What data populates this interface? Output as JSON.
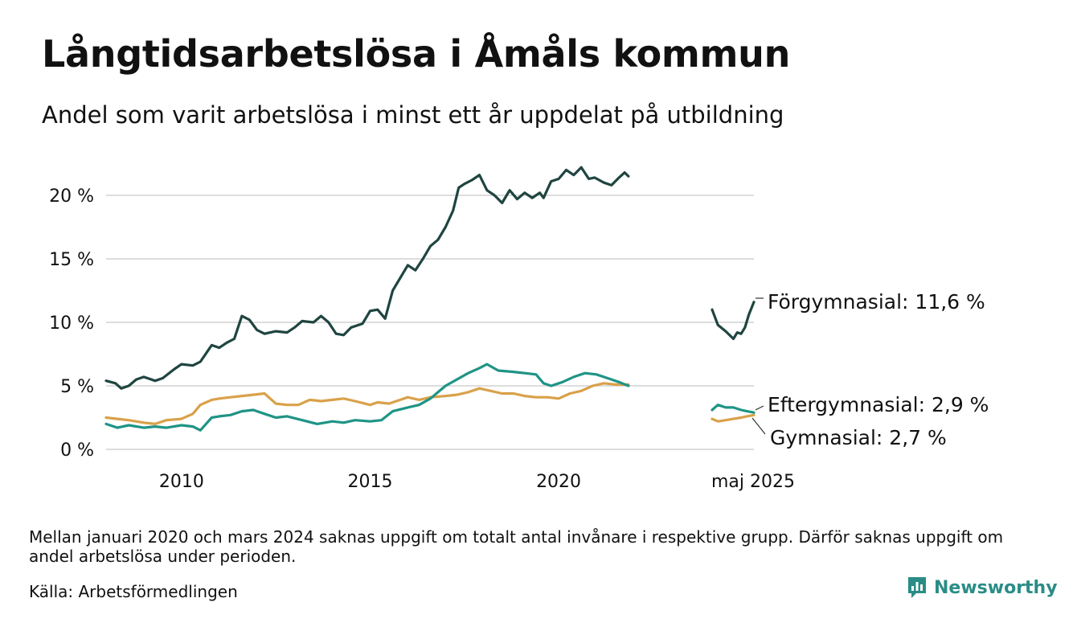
{
  "title": "Långtidsarbetslösa i Åmåls kommun",
  "subtitle": "Andel som varit arbetslösa i minst ett år uppdelat på utbildning",
  "footnote": "Mellan januari 2020 och mars 2024 saknas uppgift om totalt antal invånare i respektive grupp. Därför saknas uppgift om andel arbetslösa under perioden.",
  "source": "Källa: Arbetsförmedlingen",
  "brand": {
    "name": "Newsworthy",
    "icon": "newsworthy-logo-icon",
    "color": "#2a8c86"
  },
  "chart_data": {
    "type": "line",
    "grid": true,
    "ylim": [
      0,
      22.5
    ],
    "x_unit": "year",
    "y_ticks": [
      0,
      5,
      10,
      15,
      20
    ],
    "y_tick_labels": [
      "0 %",
      "5 %",
      "10 %",
      "15 %",
      "20 %"
    ],
    "x_ticks": [
      2010,
      2015,
      2020
    ],
    "x_tick_labels": [
      "2010",
      "2015",
      "2020"
    ],
    "broken_axis": {
      "gap_label": "maj 2025",
      "first_segment_xlim": [
        2008.0,
        2021.0
      ],
      "second_segment_xlim": [
        2024.25,
        2025.33
      ]
    },
    "series": [
      {
        "name": "Förgymnasial",
        "end_label": "Förgymnasial: 11,6 %",
        "color": "#1f4540",
        "points": [
          [
            2008.0,
            5.4
          ],
          [
            2008.25,
            5.2
          ],
          [
            2008.4,
            4.8
          ],
          [
            2008.6,
            5.0
          ],
          [
            2008.8,
            5.5
          ],
          [
            2009.0,
            5.7
          ],
          [
            2009.3,
            5.4
          ],
          [
            2009.5,
            5.6
          ],
          [
            2009.8,
            6.3
          ],
          [
            2010.0,
            6.7
          ],
          [
            2010.3,
            6.6
          ],
          [
            2010.5,
            6.9
          ],
          [
            2010.8,
            8.2
          ],
          [
            2011.0,
            8.0
          ],
          [
            2011.2,
            8.4
          ],
          [
            2011.4,
            8.7
          ],
          [
            2011.6,
            10.5
          ],
          [
            2011.8,
            10.2
          ],
          [
            2012.0,
            9.4
          ],
          [
            2012.2,
            9.1
          ],
          [
            2012.5,
            9.3
          ],
          [
            2012.8,
            9.2
          ],
          [
            2013.0,
            9.6
          ],
          [
            2013.2,
            10.1
          ],
          [
            2013.5,
            10.0
          ],
          [
            2013.7,
            10.5
          ],
          [
            2013.9,
            10.0
          ],
          [
            2014.1,
            9.1
          ],
          [
            2014.3,
            9.0
          ],
          [
            2014.5,
            9.6
          ],
          [
            2014.8,
            9.9
          ],
          [
            2015.0,
            10.9
          ],
          [
            2015.2,
            11.0
          ],
          [
            2015.4,
            10.3
          ],
          [
            2015.6,
            12.5
          ],
          [
            2015.8,
            13.5
          ],
          [
            2016.0,
            14.5
          ],
          [
            2016.2,
            14.1
          ],
          [
            2016.4,
            15.0
          ],
          [
            2016.6,
            16.0
          ],
          [
            2016.8,
            16.5
          ],
          [
            2017.0,
            17.5
          ],
          [
            2017.2,
            18.8
          ],
          [
            2017.35,
            20.6
          ],
          [
            2017.5,
            20.9
          ],
          [
            2017.7,
            21.2
          ],
          [
            2017.9,
            21.6
          ],
          [
            2018.1,
            20.4
          ],
          [
            2018.3,
            20.0
          ],
          [
            2018.5,
            19.4
          ],
          [
            2018.7,
            20.4
          ],
          [
            2018.9,
            19.7
          ],
          [
            2019.1,
            20.2
          ],
          [
            2019.3,
            19.8
          ],
          [
            2019.5,
            20.2
          ],
          [
            2019.6,
            19.8
          ],
          [
            2019.8,
            21.1
          ],
          [
            2020.0,
            21.3
          ],
          [
            2020.2,
            22.0
          ],
          [
            2020.4,
            21.6
          ],
          [
            2020.6,
            22.2
          ],
          [
            2020.8,
            21.3
          ],
          [
            2020.95,
            21.4
          ],
          [
            2021.2,
            21.0
          ],
          [
            2021.4,
            20.8
          ],
          [
            2021.6,
            21.4
          ],
          [
            2021.75,
            21.8
          ],
          [
            2021.85,
            21.5
          ],
          [
            2024.25,
            11.0
          ],
          [
            2024.4,
            9.8
          ],
          [
            2024.6,
            9.3
          ],
          [
            2024.8,
            8.7
          ],
          [
            2024.9,
            9.2
          ],
          [
            2025.0,
            9.1
          ],
          [
            2025.1,
            9.6
          ],
          [
            2025.2,
            10.6
          ],
          [
            2025.33,
            11.6
          ]
        ]
      },
      {
        "name": "Eftergymnasial",
        "end_label": "Eftergymnasial:  2,9 %",
        "color": "#1f9486",
        "points": [
          [
            2008.0,
            2.0
          ],
          [
            2008.3,
            1.7
          ],
          [
            2008.6,
            1.9
          ],
          [
            2009.0,
            1.7
          ],
          [
            2009.3,
            1.8
          ],
          [
            2009.6,
            1.7
          ],
          [
            2010.0,
            1.9
          ],
          [
            2010.3,
            1.8
          ],
          [
            2010.5,
            1.5
          ],
          [
            2010.8,
            2.5
          ],
          [
            2011.0,
            2.6
          ],
          [
            2011.3,
            2.7
          ],
          [
            2011.6,
            3.0
          ],
          [
            2011.9,
            3.1
          ],
          [
            2012.2,
            2.8
          ],
          [
            2012.5,
            2.5
          ],
          [
            2012.8,
            2.6
          ],
          [
            2013.2,
            2.3
          ],
          [
            2013.6,
            2.0
          ],
          [
            2014.0,
            2.2
          ],
          [
            2014.3,
            2.1
          ],
          [
            2014.6,
            2.3
          ],
          [
            2015.0,
            2.2
          ],
          [
            2015.3,
            2.3
          ],
          [
            2015.6,
            3.0
          ],
          [
            2016.0,
            3.3
          ],
          [
            2016.3,
            3.5
          ],
          [
            2016.6,
            4.0
          ],
          [
            2017.0,
            5.0
          ],
          [
            2017.3,
            5.5
          ],
          [
            2017.6,
            6.0
          ],
          [
            2017.9,
            6.4
          ],
          [
            2018.1,
            6.7
          ],
          [
            2018.4,
            6.2
          ],
          [
            2018.8,
            6.1
          ],
          [
            2019.1,
            6.0
          ],
          [
            2019.4,
            5.9
          ],
          [
            2019.6,
            5.2
          ],
          [
            2019.8,
            5.0
          ],
          [
            2020.1,
            5.3
          ],
          [
            2020.4,
            5.7
          ],
          [
            2020.7,
            6.0
          ],
          [
            2021.0,
            5.9
          ],
          [
            2021.3,
            5.6
          ],
          [
            2021.6,
            5.3
          ],
          [
            2021.85,
            5.0
          ],
          [
            2024.25,
            3.1
          ],
          [
            2024.4,
            3.5
          ],
          [
            2024.6,
            3.3
          ],
          [
            2024.8,
            3.3
          ],
          [
            2025.0,
            3.1
          ],
          [
            2025.15,
            3.0
          ],
          [
            2025.33,
            2.9
          ]
        ]
      },
      {
        "name": "Gymnasial",
        "end_label": "Gymnasial:  2,7 %",
        "color": "#d9a14a",
        "points": [
          [
            2008.0,
            2.5
          ],
          [
            2008.3,
            2.4
          ],
          [
            2008.6,
            2.3
          ],
          [
            2009.0,
            2.1
          ],
          [
            2009.3,
            2.0
          ],
          [
            2009.6,
            2.3
          ],
          [
            2010.0,
            2.4
          ],
          [
            2010.3,
            2.8
          ],
          [
            2010.5,
            3.5
          ],
          [
            2010.8,
            3.9
          ],
          [
            2011.0,
            4.0
          ],
          [
            2011.3,
            4.1
          ],
          [
            2011.6,
            4.2
          ],
          [
            2011.9,
            4.3
          ],
          [
            2012.2,
            4.4
          ],
          [
            2012.5,
            3.6
          ],
          [
            2012.8,
            3.5
          ],
          [
            2013.1,
            3.5
          ],
          [
            2013.4,
            3.9
          ],
          [
            2013.7,
            3.8
          ],
          [
            2014.0,
            3.9
          ],
          [
            2014.3,
            4.0
          ],
          [
            2014.6,
            3.8
          ],
          [
            2015.0,
            3.5
          ],
          [
            2015.2,
            3.7
          ],
          [
            2015.5,
            3.6
          ],
          [
            2015.8,
            3.9
          ],
          [
            2016.0,
            4.1
          ],
          [
            2016.3,
            3.9
          ],
          [
            2016.6,
            4.1
          ],
          [
            2017.0,
            4.2
          ],
          [
            2017.3,
            4.3
          ],
          [
            2017.6,
            4.5
          ],
          [
            2017.9,
            4.8
          ],
          [
            2018.2,
            4.6
          ],
          [
            2018.5,
            4.4
          ],
          [
            2018.8,
            4.4
          ],
          [
            2019.1,
            4.2
          ],
          [
            2019.4,
            4.1
          ],
          [
            2019.7,
            4.1
          ],
          [
            2020.0,
            4.0
          ],
          [
            2020.3,
            4.4
          ],
          [
            2020.6,
            4.6
          ],
          [
            2020.9,
            5.0
          ],
          [
            2021.2,
            5.2
          ],
          [
            2021.5,
            5.1
          ],
          [
            2021.85,
            5.1
          ],
          [
            2024.25,
            2.4
          ],
          [
            2024.4,
            2.2
          ],
          [
            2024.6,
            2.3
          ],
          [
            2024.8,
            2.4
          ],
          [
            2025.0,
            2.5
          ],
          [
            2025.15,
            2.6
          ],
          [
            2025.33,
            2.7
          ]
        ]
      }
    ]
  }
}
